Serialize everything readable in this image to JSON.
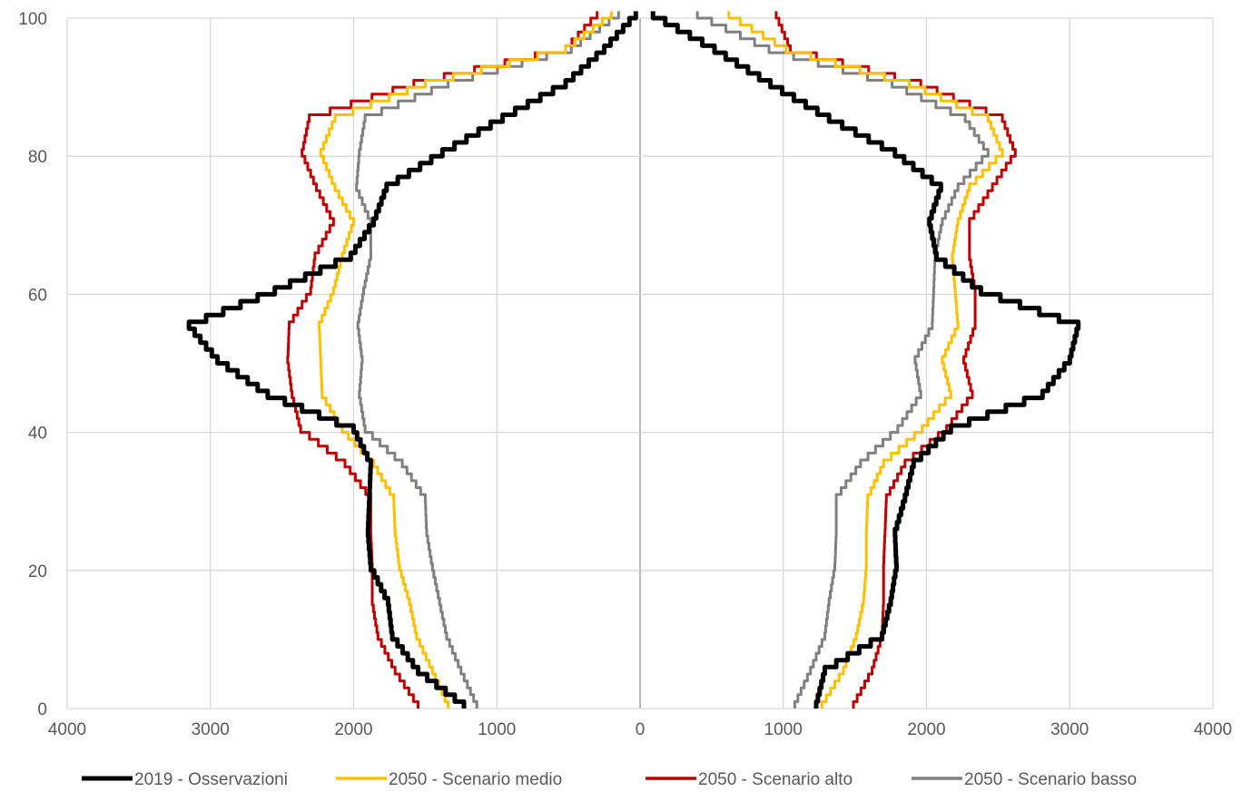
{
  "chart_data": {
    "type": "line",
    "title": "",
    "xlabel": "",
    "ylabel": "",
    "xlim": [
      -4000,
      4000
    ],
    "ylim": [
      0,
      100
    ],
    "grid": true,
    "legend_position": "bottom",
    "x_ticks": [
      -4000,
      -3000,
      -2000,
      -1000,
      0,
      1000,
      2000,
      3000,
      4000
    ],
    "x_tick_labels": [
      "4000",
      "3000",
      "2000",
      "1000",
      "0",
      "1000",
      "2000",
      "3000",
      "4000"
    ],
    "y_ticks": [
      0,
      20,
      40,
      60,
      80,
      100
    ],
    "y_tick_labels": [
      "0",
      "20",
      "40",
      "60",
      "80",
      "100"
    ],
    "note": "Age pyramid: left side males (plotted as negative x), right side females; y = age in years",
    "ages": [
      0,
      5,
      10,
      15,
      20,
      25,
      30,
      35,
      40,
      45,
      50,
      55,
      60,
      65,
      70,
      75,
      80,
      85,
      90,
      95,
      100
    ],
    "series": [
      {
        "name": "2019 - Osservazioni",
        "color": "#000000",
        "width": 5,
        "left": [
          1230,
          1550,
          1730,
          1760,
          1880,
          1900,
          1890,
          1880,
          2000,
          2600,
          2950,
          3150,
          2550,
          2020,
          1860,
          1770,
          1380,
          960,
          520,
          250,
          30
        ],
        "right": [
          1230,
          1290,
          1690,
          1750,
          1790,
          1780,
          1850,
          1910,
          2170,
          2810,
          3000,
          3060,
          2380,
          2070,
          2020,
          2100,
          1780,
          1320,
          910,
          520,
          90
        ]
      },
      {
        "name": "2050 - Scenario medio",
        "color": "#ffc000",
        "width": 3,
        "left": [
          1340,
          1450,
          1560,
          1610,
          1680,
          1710,
          1720,
          1860,
          2080,
          2220,
          2230,
          2240,
          2140,
          2080,
          2000,
          2130,
          2230,
          2130,
          1500,
          520,
          200
        ],
        "right": [
          1270,
          1420,
          1510,
          1560,
          1580,
          1580,
          1590,
          1700,
          1970,
          2170,
          2110,
          2220,
          2200,
          2180,
          2220,
          2300,
          2530,
          2430,
          1880,
          1020,
          620
        ]
      },
      {
        "name": "2050 - Scenario alto",
        "color": "#c00000",
        "width": 3,
        "left": [
          1550,
          1710,
          1830,
          1870,
          1870,
          1880,
          1880,
          2060,
          2370,
          2430,
          2460,
          2450,
          2300,
          2270,
          2140,
          2260,
          2360,
          2310,
          1580,
          520,
          300
        ],
        "right": [
          1490,
          1620,
          1690,
          1700,
          1700,
          1710,
          1720,
          1850,
          2140,
          2320,
          2260,
          2340,
          2340,
          2300,
          2300,
          2460,
          2620,
          2530,
          1960,
          1050,
          950
        ]
      },
      {
        "name": "2050 - Scenario basso",
        "color": "#808080",
        "width": 3,
        "left": [
          1140,
          1250,
          1350,
          1400,
          1450,
          1490,
          1500,
          1660,
          1920,
          1960,
          1940,
          1970,
          1930,
          1880,
          1880,
          1980,
          1960,
          1920,
          1340,
          480,
          150
        ],
        "right": [
          1080,
          1190,
          1290,
          1320,
          1360,
          1370,
          1370,
          1540,
          1800,
          1960,
          1920,
          2040,
          2050,
          2060,
          2110,
          2220,
          2430,
          2270,
          1760,
          900,
          400
        ]
      }
    ]
  }
}
